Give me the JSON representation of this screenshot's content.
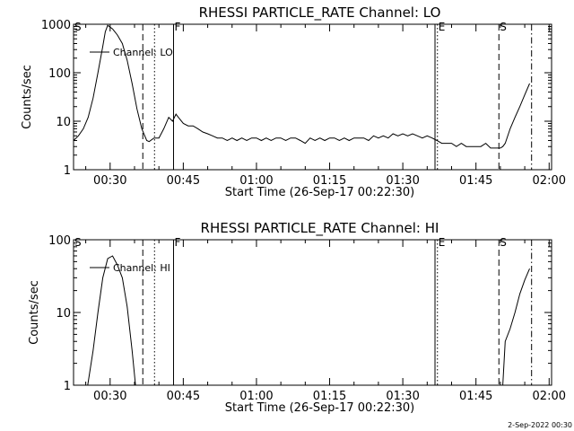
{
  "footer": "2-Sep-2022 00:30",
  "chart_data": [
    {
      "type": "line",
      "title": "RHESSI PARTICLE_RATE Channel: LO",
      "xlabel": "Start Time (26-Sep-17 00:22:30)",
      "ylabel": "Counts/sec",
      "yscale": "log",
      "xlim": [
        22.5,
        120.5
      ],
      "ylim": [
        1,
        1000
      ],
      "x_ticks": [
        30,
        45,
        60,
        75,
        90,
        105,
        120
      ],
      "x_tick_labels": [
        "00:30",
        "00:45",
        "01:00",
        "01:15",
        "01:30",
        "01:45",
        "02:00"
      ],
      "y_ticks": [
        1,
        10,
        100,
        1000
      ],
      "y_tick_labels": [
        "1",
        "10",
        "100",
        "1000"
      ],
      "legend": "Channel: LO",
      "series": [
        {
          "name": "Channel: LO",
          "x": [
            22.5,
            23.5,
            24.5,
            25.5,
            26.5,
            27.5,
            28.5,
            29,
            29.5,
            30.5,
            31.5,
            32.5,
            33.5,
            34.5,
            35.5,
            36.5,
            37.5,
            38,
            39,
            40,
            41,
            42,
            42.8,
            43.5,
            44,
            45,
            46,
            47,
            48,
            49,
            50,
            51,
            52,
            53,
            54,
            55,
            56,
            57,
            58,
            59,
            60,
            61,
            62,
            63,
            64,
            65,
            66,
            67,
            68,
            69,
            70,
            71,
            72,
            73,
            74,
            75,
            76,
            77,
            78,
            79,
            80,
            81,
            82,
            83,
            84,
            85,
            86,
            87,
            88,
            89,
            90,
            91,
            92,
            93,
            94,
            95,
            96,
            97,
            98,
            99,
            100,
            101,
            102,
            103,
            104,
            105,
            106,
            107,
            108,
            109,
            110,
            110.5,
            111,
            112,
            113,
            114,
            115,
            116
          ],
          "y": [
            4,
            5,
            7,
            12,
            30,
            100,
            350,
            700,
            950,
            800,
            600,
            400,
            180,
            60,
            18,
            7,
            4,
            3.8,
            4.5,
            4.5,
            7,
            12,
            10,
            14,
            12,
            9,
            8,
            8,
            7,
            6,
            5.5,
            5,
            4.5,
            4.5,
            4,
            4.5,
            4,
            4.5,
            4,
            4.5,
            4.5,
            4,
            4.5,
            4,
            4.5,
            4.5,
            4,
            4.5,
            4.5,
            4,
            3.5,
            4.5,
            4,
            4.5,
            4,
            4.5,
            4.5,
            4,
            4.5,
            4,
            4.5,
            4.5,
            4.5,
            4,
            5,
            4.5,
            5,
            4.5,
            5.5,
            5,
            5.5,
            5,
            5.5,
            5,
            4.5,
            5,
            4.5,
            4,
            3.5,
            3.5,
            3.5,
            3,
            3.5,
            3,
            3,
            3,
            3,
            3.5,
            2.8,
            2.8,
            2.8,
            3,
            3.5,
            7,
            12,
            20,
            35,
            60
          ]
        }
      ],
      "annotations": [
        {
          "label": "S",
          "x": 22.5,
          "line": "none"
        },
        {
          "label": "",
          "x": 36.7,
          "line": "dashed"
        },
        {
          "label": "",
          "x": 39.1,
          "line": "dotted"
        },
        {
          "label": "F",
          "x": 43,
          "line": "solid"
        },
        {
          "label": "",
          "x": 96.6,
          "line": "solid"
        },
        {
          "label": "E",
          "x": 97.1,
          "line": "dotted"
        },
        {
          "label": "S",
          "x": 109.7,
          "line": "dashed"
        },
        {
          "label": "",
          "x": 116.4,
          "line": "dashdot"
        }
      ]
    },
    {
      "type": "line",
      "title": "RHESSI PARTICLE_RATE Channel: HI",
      "xlabel": "Start Time (26-Sep-17 00:22:30)",
      "ylabel": "Counts/sec",
      "yscale": "log",
      "xlim": [
        22.5,
        120.5
      ],
      "ylim": [
        1,
        100
      ],
      "x_ticks": [
        30,
        45,
        60,
        75,
        90,
        105,
        120
      ],
      "x_tick_labels": [
        "00:30",
        "00:45",
        "01:00",
        "01:15",
        "01:30",
        "01:45",
        "02:00"
      ],
      "y_ticks": [
        1,
        10,
        100
      ],
      "y_tick_labels": [
        "1",
        "10",
        "100"
      ],
      "legend": "Channel: HI",
      "series": [
        {
          "name": "Channel: HI",
          "x": [
            25.4,
            26.5,
            27.5,
            28.5,
            29.5,
            30.5,
            31.5,
            32.5,
            33.5,
            34.5,
            35.2
          ],
          "y": [
            1,
            3,
            10,
            30,
            55,
            60,
            45,
            30,
            12,
            3,
            1
          ],
          "segment": 1
        },
        {
          "name": "Channel: HI",
          "x": [
            110.5,
            111,
            112,
            113,
            114,
            115,
            116
          ],
          "y": [
            1,
            4,
            6,
            10,
            18,
            28,
            40
          ],
          "segment": 2
        }
      ],
      "annotations": [
        {
          "label": "S",
          "x": 22.5,
          "line": "none"
        },
        {
          "label": "",
          "x": 36.7,
          "line": "dashed"
        },
        {
          "label": "",
          "x": 39.1,
          "line": "dotted"
        },
        {
          "label": "F",
          "x": 43,
          "line": "solid"
        },
        {
          "label": "",
          "x": 96.6,
          "line": "solid"
        },
        {
          "label": "E",
          "x": 97.1,
          "line": "dotted"
        },
        {
          "label": "S",
          "x": 109.7,
          "line": "dashed"
        },
        {
          "label": "",
          "x": 116.4,
          "line": "dashdot"
        }
      ]
    }
  ]
}
